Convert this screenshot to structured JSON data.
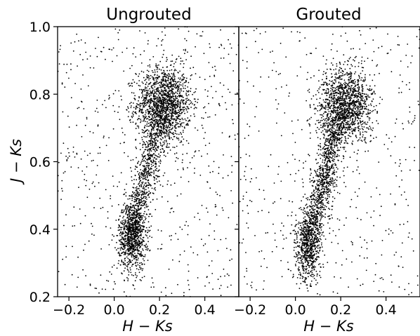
{
  "chart_data": [
    {
      "type": "scatter",
      "title": "Ungrouted",
      "xlabel_main": "H",
      "xlabel_sep": " − ",
      "xlabel_ks": "Ks",
      "ylabel_main": "J",
      "ylabel_sep": " − ",
      "ylabel_ks": "Ks",
      "xlim": [
        -0.25,
        0.55
      ],
      "ylim": [
        0.2,
        1.0
      ],
      "x_ticks": [
        -0.2,
        0.0,
        0.2,
        0.4
      ],
      "x_tick_labels": [
        "−0.2",
        "0.0",
        "0.2",
        "0.4"
      ],
      "y_ticks": [
        0.2,
        0.4,
        0.6,
        0.8,
        1.0
      ],
      "y_tick_labels": [
        "0.2",
        "0.4",
        "0.6",
        "0.8",
        "1.0"
      ],
      "grid": false,
      "point_color": "#000000",
      "clusters": [
        {
          "label": "dense clump",
          "center_x": 0.22,
          "center_y": 0.77,
          "count": 1500
        },
        {
          "label": "lower branch",
          "center_x": 0.08,
          "center_y": 0.38,
          "count": 900
        },
        {
          "label": "connecting sequence",
          "from": [
            0.09,
            0.42
          ],
          "to": [
            0.2,
            0.72
          ],
          "count": 700
        },
        {
          "label": "scattered field",
          "range_x": [
            -0.25,
            0.55
          ],
          "range_y": [
            0.2,
            1.0
          ],
          "count": 600
        }
      ]
    },
    {
      "type": "scatter",
      "title": "Grouted",
      "xlabel_main": "H",
      "xlabel_sep": " − ",
      "xlabel_ks": "Ks",
      "xlim": [
        -0.25,
        0.55
      ],
      "ylim": [
        0.2,
        1.0
      ],
      "x_ticks": [
        -0.2,
        0.0,
        0.2,
        0.4
      ],
      "x_tick_labels": [
        "−0.2",
        "0.0",
        "0.2",
        "0.4"
      ],
      "y_ticks": [
        0.2,
        0.4,
        0.6,
        0.8,
        1.0
      ],
      "grid": false,
      "point_color": "#000000",
      "clusters": [
        {
          "label": "dense clump",
          "center_x": 0.22,
          "center_y": 0.77,
          "count": 1400
        },
        {
          "label": "lower branch",
          "center_x": 0.06,
          "center_y": 0.35,
          "count": 700
        },
        {
          "label": "connecting sequence",
          "from": [
            0.07,
            0.4
          ],
          "to": [
            0.19,
            0.72
          ],
          "count": 900
        },
        {
          "label": "scattered field",
          "range_x": [
            -0.25,
            0.55
          ],
          "range_y": [
            0.2,
            1.0
          ],
          "count": 500
        }
      ]
    }
  ]
}
